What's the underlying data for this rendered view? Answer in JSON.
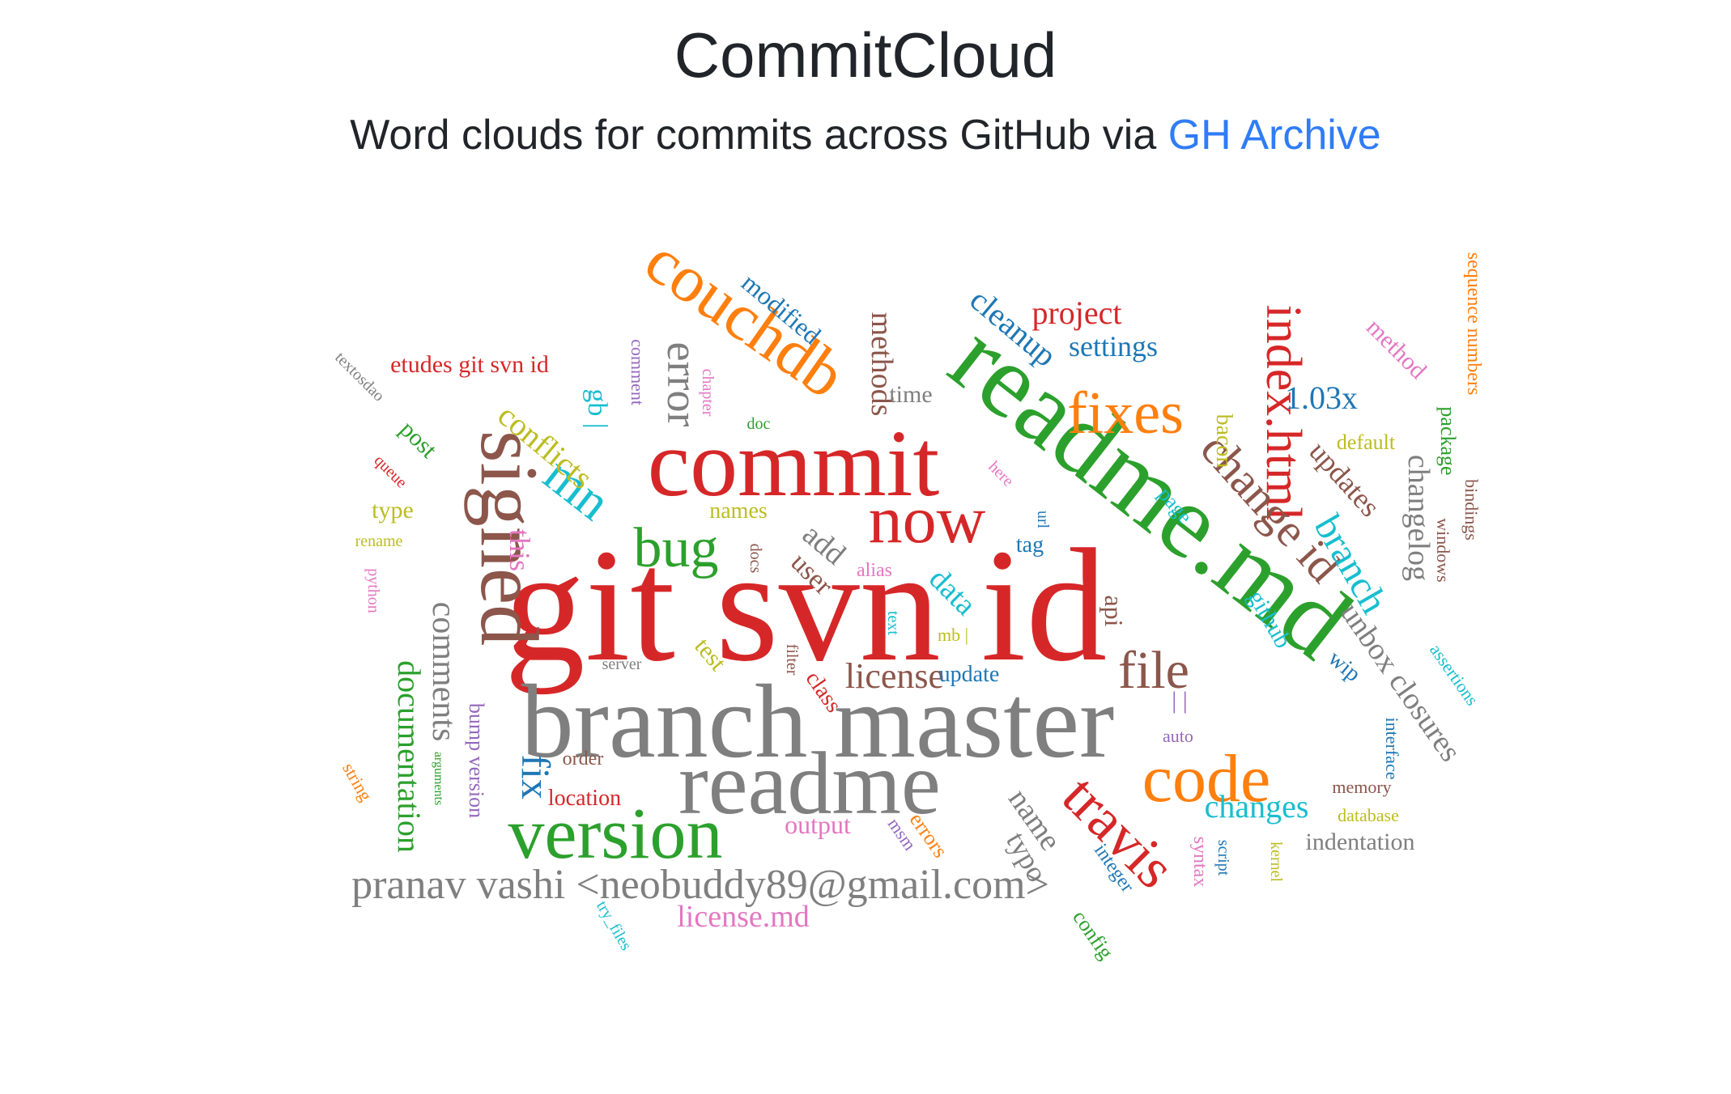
{
  "header": {
    "title": "CommitCloud",
    "subtitle_prefix": "Word clouds for commits across GitHub via ",
    "subtitle_link": "GH Archive"
  },
  "palette": {
    "red": "#d62728",
    "gray": "#7f7f7f",
    "green": "#2ca02c",
    "orange": "#ff7f0e",
    "brown": "#8c564b",
    "blue": "#1f77b4",
    "cyan": "#17becf",
    "olive": "#bcbd22",
    "pink": "#e377c2",
    "purple": "#9467bd",
    "link": "#2f7cf6"
  },
  "words": [
    {
      "text": "git svn id",
      "color": "red"
    },
    {
      "text": "branch master",
      "color": "gray"
    },
    {
      "text": "readme.md",
      "color": "green"
    },
    {
      "text": "commit",
      "color": "red"
    },
    {
      "text": "readme",
      "color": "gray"
    },
    {
      "text": "signed",
      "color": "brown"
    },
    {
      "text": "couchdb",
      "color": "orange"
    },
    {
      "text": "version",
      "color": "green"
    },
    {
      "text": "now",
      "color": "red"
    },
    {
      "text": "code",
      "color": "orange"
    },
    {
      "text": "fixes",
      "color": "orange"
    },
    {
      "text": "index.html",
      "color": "red"
    },
    {
      "text": "travis",
      "color": "red"
    },
    {
      "text": "bug",
      "color": "green"
    },
    {
      "text": "mn",
      "color": "cyan"
    },
    {
      "text": "file",
      "color": "brown"
    },
    {
      "text": "change id",
      "color": "brown"
    },
    {
      "text": "pranav vashi <neobuddy89@gmail.com>",
      "color": "gray"
    },
    {
      "text": "error",
      "color": "gray"
    },
    {
      "text": "branch",
      "color": "cyan"
    },
    {
      "text": "cleanup",
      "color": "blue"
    },
    {
      "text": "fix",
      "color": "blue"
    },
    {
      "text": "comments",
      "color": "gray"
    },
    {
      "text": "documentation",
      "color": "green"
    },
    {
      "text": "license",
      "color": "brown"
    },
    {
      "text": "changelog",
      "color": "gray"
    },
    {
      "text": "unbox closures",
      "color": "gray"
    },
    {
      "text": "conflicts",
      "color": "olive"
    },
    {
      "text": "methods",
      "color": "brown"
    },
    {
      "text": "project",
      "color": "red"
    },
    {
      "text": "settings",
      "color": "blue"
    },
    {
      "text": "1.03x",
      "color": "blue"
    },
    {
      "text": "updates",
      "color": "brown"
    },
    {
      "text": "name",
      "color": "gray"
    },
    {
      "text": "typo",
      "color": "gray"
    },
    {
      "text": "changes",
      "color": "cyan"
    },
    {
      "text": "data",
      "color": "cyan"
    },
    {
      "text": "license.md",
      "color": "pink"
    },
    {
      "text": "add",
      "color": "gray"
    },
    {
      "text": "user",
      "color": "brown"
    },
    {
      "text": "modified",
      "color": "blue"
    },
    {
      "text": "this",
      "color": "pink"
    },
    {
      "text": "gb |",
      "color": "cyan"
    },
    {
      "text": "etudes git svn id",
      "color": "red"
    },
    {
      "text": "time",
      "color": "gray"
    },
    {
      "text": "api",
      "color": "brown"
    },
    {
      "text": "github",
      "color": "cyan"
    },
    {
      "text": "indentation",
      "color": "gray"
    },
    {
      "text": "output",
      "color": "pink"
    },
    {
      "text": "bump version",
      "color": "purple"
    },
    {
      "text": "test",
      "color": "olive"
    },
    {
      "text": "class",
      "color": "red"
    },
    {
      "text": "post",
      "color": "green"
    },
    {
      "text": "type",
      "color": "olive"
    },
    {
      "text": "location",
      "color": "red"
    },
    {
      "text": "names",
      "color": "olive"
    },
    {
      "text": "method",
      "color": "pink"
    },
    {
      "text": "bacon",
      "color": "olive"
    },
    {
      "text": "default",
      "color": "olive"
    },
    {
      "text": "package",
      "color": "green"
    },
    {
      "text": "update",
      "color": "blue"
    },
    {
      "text": "tag",
      "color": "blue"
    },
    {
      "text": "page",
      "color": "cyan"
    },
    {
      "text": "wip",
      "color": "blue"
    },
    {
      "text": "errors",
      "color": "orange"
    },
    {
      "text": "config",
      "color": "green"
    },
    {
      "text": "integer",
      "color": "blue"
    },
    {
      "text": "order",
      "color": "brown"
    },
    {
      "text": "sequence numbers",
      "color": "orange"
    },
    {
      "text": "bindings",
      "color": "brown"
    },
    {
      "text": "windows",
      "color": "brown"
    },
    {
      "text": "assertions",
      "color": "cyan"
    },
    {
      "text": "interface",
      "color": "blue"
    },
    {
      "text": "memory",
      "color": "brown"
    },
    {
      "text": "database",
      "color": "olive"
    },
    {
      "text": "kernel",
      "color": "olive"
    },
    {
      "text": "syntax",
      "color": "pink"
    },
    {
      "text": "script",
      "color": "blue"
    },
    {
      "text": "auto",
      "color": "purple"
    },
    {
      "text": "| |",
      "color": "purple"
    },
    {
      "text": "msm",
      "color": "purple"
    },
    {
      "text": "alias",
      "color": "pink"
    },
    {
      "text": "mb |",
      "color": "olive"
    },
    {
      "text": "text",
      "color": "cyan"
    },
    {
      "text": "filter",
      "color": "brown"
    },
    {
      "text": "docs",
      "color": "brown"
    },
    {
      "text": "url",
      "color": "blue"
    },
    {
      "text": "here",
      "color": "pink"
    },
    {
      "text": "doc",
      "color": "green"
    },
    {
      "text": "chapter",
      "color": "pink"
    },
    {
      "text": "comment",
      "color": "purple"
    },
    {
      "text": "textosdao",
      "color": "gray"
    },
    {
      "text": "queue",
      "color": "red"
    },
    {
      "text": "rename",
      "color": "olive"
    },
    {
      "text": "python",
      "color": "pink"
    },
    {
      "text": "server",
      "color": "gray"
    },
    {
      "text": "string",
      "color": "orange"
    },
    {
      "text": "arguments",
      "color": "green"
    },
    {
      "text": "try_files",
      "color": "cyan"
    }
  ]
}
